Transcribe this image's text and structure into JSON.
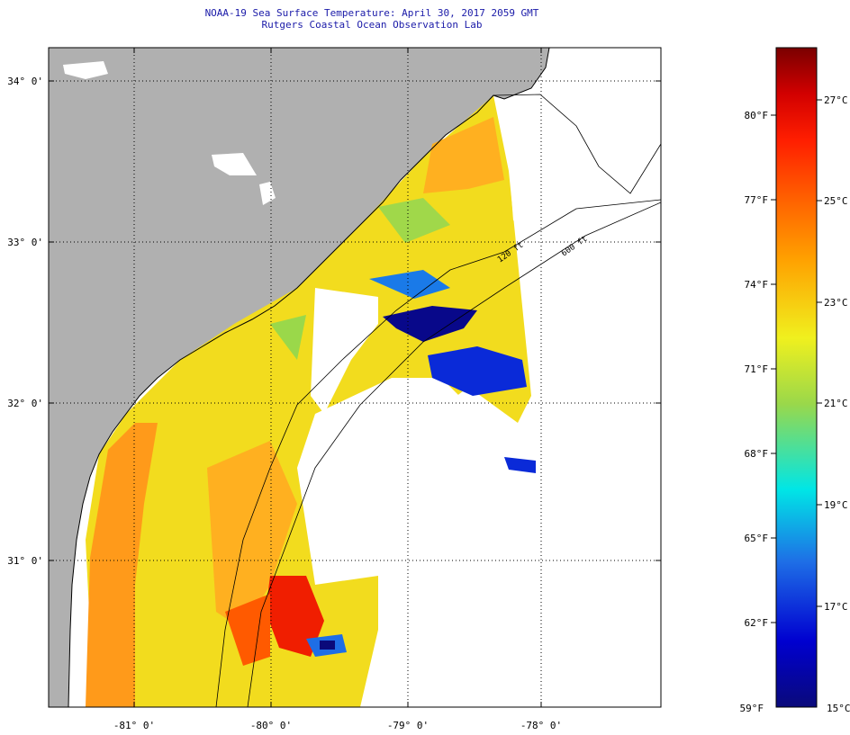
{
  "header": {
    "title": "NOAA-19 Sea Surface Temperature:  April 30, 2017 2059 GMT",
    "subtitle": "Rutgers Coastal Ocean Observation Lab"
  },
  "map": {
    "lat_labels": [
      "34° 0'",
      "33° 0'",
      "32° 0'",
      "31° 0'"
    ],
    "lon_labels": [
      "-81° 0'",
      "-80° 0'",
      "-79° 0'",
      "-78° 0'"
    ],
    "isobaths": [
      "120 ft",
      "600 ft"
    ],
    "colors": {
      "land": "#b0b0b0",
      "nodata": "#ffffff",
      "coast": "#000000"
    }
  },
  "colorbar": {
    "fahrenheit_labels": [
      "80°F",
      "77°F",
      "74°F",
      "71°F",
      "68°F",
      "65°F",
      "62°F",
      "59°F"
    ],
    "celsius_labels": [
      "27°C",
      "25°C",
      "23°C",
      "21°C",
      "19°C",
      "17°C",
      "15°C"
    ],
    "range_c": [
      15,
      28
    ],
    "range_f": [
      59,
      82.4
    ],
    "stops": [
      "#0a0a7a",
      "#0000d0",
      "#1e6ee6",
      "#00e6e6",
      "#9ad84a",
      "#f0f01e",
      "#ffa000",
      "#ff5a00",
      "#ff1e00",
      "#d20000",
      "#7a0000"
    ]
  }
}
